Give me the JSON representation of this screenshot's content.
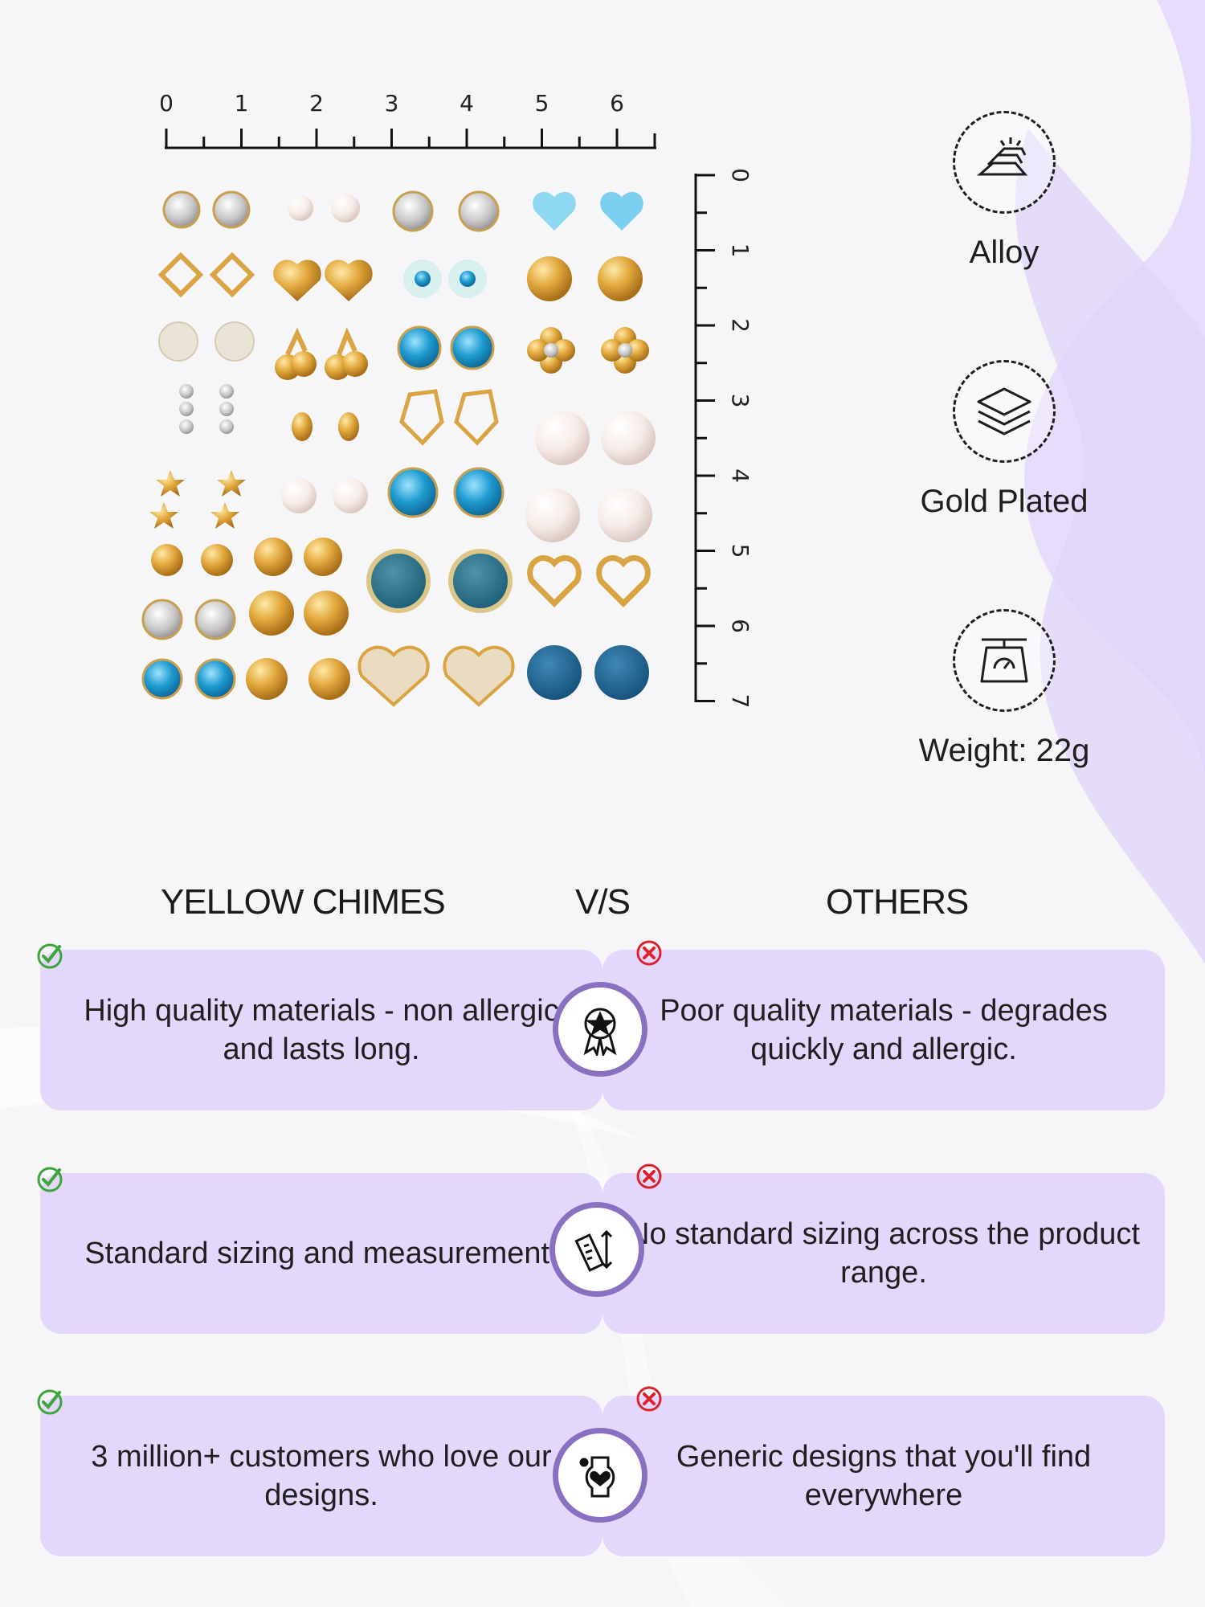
{
  "ruler_top": {
    "labels": [
      "0",
      "1",
      "2",
      "3",
      "4",
      "5",
      "6"
    ]
  },
  "ruler_side": {
    "labels": [
      "0",
      "1",
      "2",
      "3",
      "4",
      "5",
      "6",
      "7"
    ]
  },
  "features": [
    {
      "icon": "gold-bars-icon",
      "label": "Alloy"
    },
    {
      "icon": "layers-icon",
      "label": "Gold Plated"
    },
    {
      "icon": "scale-icon",
      "label": "Weight: 22g"
    }
  ],
  "comparison": {
    "left_heading": "YELLOW CHIMES",
    "vs_heading": "V/S",
    "right_heading": "OTHERS",
    "rows": [
      {
        "left": "High quality materials - non allergic and lasts long.",
        "icon": "quality-badge-icon",
        "right": "Poor quality materials - degrades quickly and allergic."
      },
      {
        "left": "Standard sizing and measurement.",
        "icon": "ruler-icon",
        "right": "No standard sizing across the product range."
      },
      {
        "left": "3 million+ customers who love our designs.",
        "icon": "customer-love-icon",
        "right": "Generic designs that you'll find everywhere"
      }
    ]
  },
  "colors": {
    "card": "#e3d8fb",
    "badge_ring": "#8a70c0",
    "check": "#3ca53c",
    "cross": "#d9222e",
    "gold": "#d9a441",
    "blue": "#2aa3d3",
    "pearl": "#f4ebe6"
  }
}
